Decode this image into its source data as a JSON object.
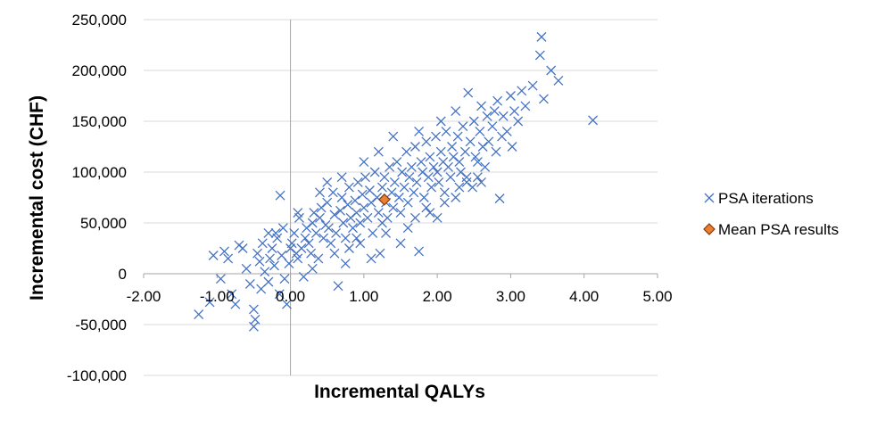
{
  "chart_data": {
    "type": "scatter",
    "title": "",
    "xlabel": "Incremental QALYs",
    "ylabel": "Incremental cost (CHF)",
    "xlim": [
      -2,
      5
    ],
    "ylim": [
      -100000,
      250000
    ],
    "x_ticks": [
      -2,
      -1,
      0,
      1,
      2,
      3,
      4,
      5
    ],
    "x_tick_labels": [
      "-2.00",
      "-1.00",
      "0.00",
      "1.00",
      "2.00",
      "3.00",
      "4.00",
      "5.00"
    ],
    "y_ticks": [
      -100000,
      -50000,
      0,
      50000,
      100000,
      150000,
      200000,
      250000
    ],
    "y_tick_labels": [
      "-100,000",
      "-50,000",
      "0",
      "50,000",
      "100,000",
      "150,000",
      "200,000",
      "250,000"
    ],
    "grid": "horizontal",
    "legend_position": "right",
    "colors": {
      "iterations": "#4472C4",
      "mean": "#ED7D31",
      "mean_border": "#843C0C",
      "grid": "#d9d9d9",
      "axis": "#a6a6a6"
    },
    "series": [
      {
        "name": "PSA iterations",
        "marker": "x",
        "points": [
          [
            -1.25,
            -40000
          ],
          [
            -1.1,
            -28000
          ],
          [
            -1.05,
            18000
          ],
          [
            -0.95,
            -5000
          ],
          [
            -0.9,
            22000
          ],
          [
            -0.85,
            15000
          ],
          [
            -0.8,
            -20000
          ],
          [
            -0.75,
            -30000
          ],
          [
            -0.7,
            28000
          ],
          [
            -0.65,
            25000
          ],
          [
            -0.6,
            5000
          ],
          [
            -0.55,
            -10000
          ],
          [
            -0.5,
            -35000
          ],
          [
            -0.5,
            -52000
          ],
          [
            -0.48,
            -45000
          ],
          [
            -0.45,
            20000
          ],
          [
            -0.42,
            12000
          ],
          [
            -0.4,
            -15000
          ],
          [
            -0.38,
            30000
          ],
          [
            -0.35,
            2000
          ],
          [
            -0.3,
            -8000
          ],
          [
            -0.28,
            15000
          ],
          [
            -0.25,
            25000
          ],
          [
            -0.22,
            8000
          ],
          [
            -0.2,
            40000
          ],
          [
            -0.18,
            35000
          ],
          [
            -0.15,
            -20000
          ],
          [
            -0.14,
            77000
          ],
          [
            -0.12,
            18000
          ],
          [
            -0.1,
            45000
          ],
          [
            -0.08,
            -5000
          ],
          [
            -0.05,
            -30000
          ],
          [
            -0.02,
            10000
          ],
          [
            0.02,
            30000
          ],
          [
            0.05,
            40000
          ],
          [
            0.08,
            20000
          ],
          [
            0.1,
            15000
          ],
          [
            0.12,
            55000
          ],
          [
            0.15,
            25000
          ],
          [
            0.18,
            -3000
          ],
          [
            0.2,
            35000
          ],
          [
            0.22,
            45000
          ],
          [
            0.25,
            30000
          ],
          [
            0.28,
            20000
          ],
          [
            0.3,
            50000
          ],
          [
            0.32,
            60000
          ],
          [
            0.35,
            40000
          ],
          [
            0.38,
            15000
          ],
          [
            0.4,
            55000
          ],
          [
            0.42,
            65000
          ],
          [
            0.45,
            35000
          ],
          [
            0.48,
            48000
          ],
          [
            0.5,
            70000
          ],
          [
            0.52,
            45000
          ],
          [
            0.55,
            30000
          ],
          [
            0.58,
            80000
          ],
          [
            0.6,
            58000
          ],
          [
            0.62,
            40000
          ],
          [
            0.65,
            -12000
          ],
          [
            0.68,
            62000
          ],
          [
            0.7,
            75000
          ],
          [
            0.72,
            50000
          ],
          [
            0.75,
            35000
          ],
          [
            0.78,
            68000
          ],
          [
            0.8,
            85000
          ],
          [
            0.82,
            55000
          ],
          [
            0.85,
            45000
          ],
          [
            0.88,
            72000
          ],
          [
            0.9,
            60000
          ],
          [
            0.92,
            90000
          ],
          [
            0.95,
            50000
          ],
          [
            0.98,
            78000
          ],
          [
            1.0,
            65000
          ],
          [
            1.02,
            95000
          ],
          [
            1.05,
            55000
          ],
          [
            1.08,
            82000
          ],
          [
            1.1,
            70000
          ],
          [
            1.12,
            40000
          ],
          [
            1.15,
            100000
          ],
          [
            1.18,
            75000
          ],
          [
            1.2,
            60000
          ],
          [
            1.22,
            20000
          ],
          [
            1.25,
            85000
          ],
          [
            1.28,
            95000
          ],
          [
            1.3,
            70000
          ],
          [
            1.32,
            55000
          ],
          [
            1.35,
            105000
          ],
          [
            1.38,
            80000
          ],
          [
            1.4,
            65000
          ],
          [
            1.42,
            90000
          ],
          [
            1.45,
            110000
          ],
          [
            1.48,
            75000
          ],
          [
            1.5,
            60000
          ],
          [
            1.52,
            100000
          ],
          [
            1.55,
            85000
          ],
          [
            1.58,
            120000
          ],
          [
            1.6,
            70000
          ],
          [
            1.62,
            95000
          ],
          [
            1.65,
            105000
          ],
          [
            1.68,
            80000
          ],
          [
            1.7,
            125000
          ],
          [
            1.72,
            90000
          ],
          [
            1.75,
            22000
          ],
          [
            1.78,
            110000
          ],
          [
            1.8,
            100000
          ],
          [
            1.82,
            75000
          ],
          [
            1.85,
            130000
          ],
          [
            1.88,
            95000
          ],
          [
            1.9,
            115000
          ],
          [
            1.92,
            85000
          ],
          [
            1.95,
            105000
          ],
          [
            1.98,
            135000
          ],
          [
            2.0,
            100000
          ],
          [
            2.02,
            90000
          ],
          [
            2.05,
            120000
          ],
          [
            2.08,
            110000
          ],
          [
            2.1,
            80000
          ],
          [
            2.12,
            140000
          ],
          [
            2.15,
            105000
          ],
          [
            2.18,
            95000
          ],
          [
            2.2,
            125000
          ],
          [
            2.22,
            115000
          ],
          [
            2.25,
            75000
          ],
          [
            2.28,
            135000
          ],
          [
            2.3,
            110000
          ],
          [
            2.32,
            100000
          ],
          [
            2.35,
            145000
          ],
          [
            2.38,
            120000
          ],
          [
            2.4,
            90000
          ],
          [
            2.42,
            178000
          ],
          [
            2.45,
            130000
          ],
          [
            2.48,
            85000
          ],
          [
            2.5,
            150000
          ],
          [
            2.52,
            115000
          ],
          [
            2.55,
            95000
          ],
          [
            2.58,
            140000
          ],
          [
            2.6,
            165000
          ],
          [
            2.62,
            125000
          ],
          [
            2.65,
            105000
          ],
          [
            2.68,
            155000
          ],
          [
            2.7,
            130000
          ],
          [
            2.75,
            145000
          ],
          [
            2.78,
            160000
          ],
          [
            2.8,
            120000
          ],
          [
            2.82,
            170000
          ],
          [
            2.85,
            74000
          ],
          [
            2.88,
            135000
          ],
          [
            2.9,
            155000
          ],
          [
            2.95,
            140000
          ],
          [
            3.0,
            175000
          ],
          [
            3.02,
            125000
          ],
          [
            3.05,
            160000
          ],
          [
            3.1,
            150000
          ],
          [
            3.15,
            180000
          ],
          [
            3.2,
            165000
          ],
          [
            3.3,
            185000
          ],
          [
            3.4,
            215000
          ],
          [
            3.42,
            233000
          ],
          [
            3.45,
            172000
          ],
          [
            3.55,
            200000
          ],
          [
            3.65,
            190000
          ],
          [
            4.12,
            151000
          ],
          [
            0.3,
            5000
          ],
          [
            0.6,
            20000
          ],
          [
            0.9,
            35000
          ],
          [
            1.1,
            15000
          ],
          [
            1.3,
            40000
          ],
          [
            1.5,
            30000
          ],
          [
            1.7,
            55000
          ],
          [
            1.9,
            60000
          ],
          [
            2.1,
            70000
          ],
          [
            2.3,
            85000
          ],
          [
            2.6,
            90000
          ],
          [
            0.4,
            80000
          ],
          [
            0.7,
            95000
          ],
          [
            1.0,
            110000
          ],
          [
            1.2,
            120000
          ],
          [
            1.4,
            135000
          ],
          [
            0.8,
            25000
          ],
          [
            1.6,
            45000
          ],
          [
            2.0,
            55000
          ],
          [
            2.4,
            95000
          ],
          [
            0.0,
            25000
          ],
          [
            -0.3,
            40000
          ],
          [
            0.1,
            60000
          ],
          [
            0.5,
            90000
          ],
          [
            1.75,
            140000
          ],
          [
            2.05,
            150000
          ],
          [
            2.25,
            160000
          ],
          [
            2.55,
            110000
          ],
          [
            1.85,
            65000
          ],
          [
            1.25,
            50000
          ],
          [
            0.95,
            30000
          ],
          [
            0.75,
            10000
          ]
        ]
      },
      {
        "name": "Mean PSA results",
        "marker": "diamond",
        "points": [
          [
            1.28,
            73000
          ]
        ]
      }
    ]
  }
}
